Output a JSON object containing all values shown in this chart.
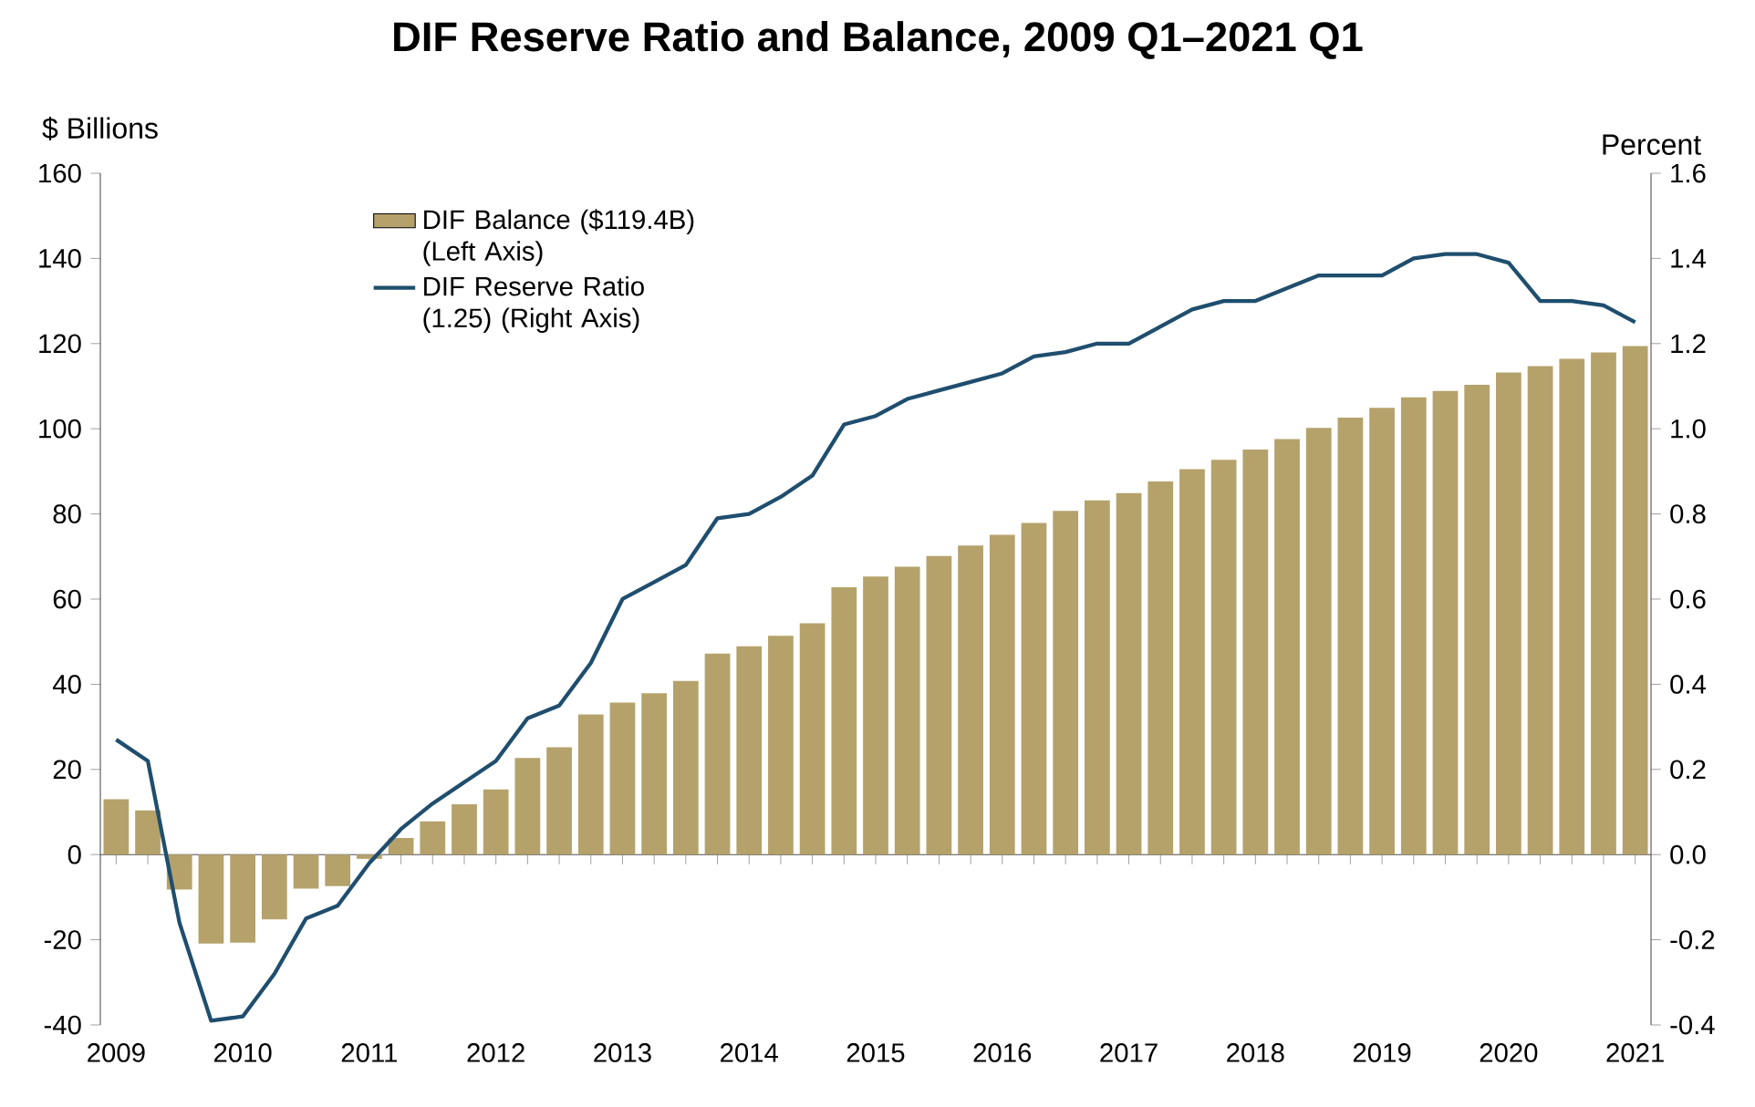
{
  "chart_data": {
    "type": "bar",
    "title": "DIF Reserve Ratio and Balance, 2009 Q1–2021 Q1",
    "ylabel": "$ Billions",
    "y2label": "Percent",
    "categories": [
      "2009",
      null,
      null,
      null,
      "2010",
      null,
      null,
      null,
      "2011",
      null,
      null,
      null,
      "2012",
      null,
      null,
      null,
      "2013",
      null,
      null,
      null,
      "2014",
      null,
      null,
      null,
      "2015",
      null,
      null,
      null,
      "2016",
      null,
      null,
      null,
      "2017",
      null,
      null,
      null,
      "2018",
      null,
      null,
      null,
      "2019",
      null,
      null,
      null,
      "2020",
      null,
      null,
      null,
      "2021"
    ],
    "series": [
      {
        "name": "DIF Balance ($119.4B) (Left Axis)",
        "color": "#b5a26b",
        "values": [
          13,
          10.4,
          -8.2,
          -20.9,
          -20.7,
          -15.2,
          -8.0,
          -7.4,
          -1.0,
          3.9,
          7.8,
          11.8,
          15.3,
          22.7,
          25.2,
          32.9,
          35.7,
          37.9,
          40.8,
          47.2,
          48.9,
          51.4,
          54.3,
          62.8,
          65.3,
          67.6,
          70.1,
          72.6,
          75.1,
          77.9,
          80.7,
          83.2,
          84.9,
          87.6,
          90.5,
          92.7,
          95.1,
          97.6,
          100.2,
          102.6,
          104.9,
          107.4,
          108.9,
          110.3,
          113.2,
          114.7,
          116.4,
          117.9,
          119.4
        ]
      },
      {
        "name": "DIF Reserve Ratio (1.25) (Right Axis)",
        "type": "line",
        "axis": "y2",
        "color": "#1f4e6e",
        "values": [
          0.27,
          0.22,
          -0.16,
          -0.39,
          -0.38,
          -0.28,
          -0.15,
          -0.12,
          -0.02,
          0.06,
          0.12,
          0.17,
          0.22,
          0.32,
          0.35,
          0.45,
          0.6,
          0.64,
          0.68,
          0.79,
          0.8,
          0.84,
          0.89,
          1.01,
          1.03,
          1.07,
          1.09,
          1.11,
          1.13,
          1.17,
          1.18,
          1.2,
          1.2,
          1.24,
          1.28,
          1.3,
          1.3,
          1.33,
          1.36,
          1.36,
          1.36,
          1.4,
          1.41,
          1.41,
          1.39,
          1.3,
          1.3,
          1.29,
          1.25
        ]
      }
    ],
    "ylim": [
      -40,
      160
    ],
    "yticks": [
      -40,
      -20,
      0,
      20,
      40,
      60,
      80,
      100,
      120,
      140,
      160
    ],
    "y2lim": [
      -0.4,
      1.6
    ],
    "y2ticks": [
      {
        "value": -0.4,
        "label": "-0.4"
      },
      {
        "value": -0.2,
        "label": "-0.2"
      },
      {
        "value": 0,
        "label": "0.0"
      },
      {
        "value": 0.2,
        "label": "0.2"
      },
      {
        "value": 0.4,
        "label": "0.4"
      },
      {
        "value": 0.6,
        "label": "0.6"
      },
      {
        "value": 0.8,
        "label": "0.8"
      },
      {
        "value": 1.0,
        "label": "1.0"
      },
      {
        "value": 1.2,
        "label": "1.2"
      },
      {
        "value": 1.4,
        "label": "1.4"
      },
      {
        "value": 1.6,
        "label": "1.6"
      }
    ],
    "legend": "top left",
    "marker": "none",
    "line_style": "solid"
  }
}
